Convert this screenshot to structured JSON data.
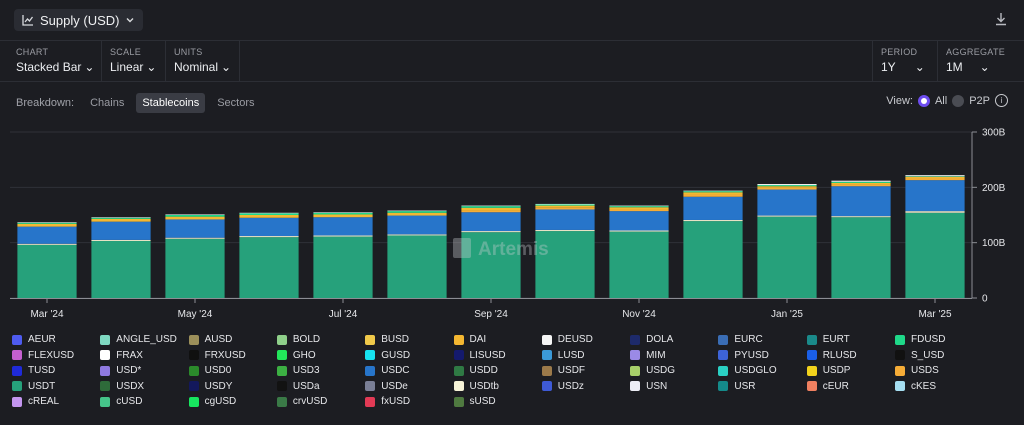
{
  "header": {
    "title": "Supply (USD)"
  },
  "controls": [
    {
      "label": "CHART",
      "value": "Stacked Bar"
    },
    {
      "label": "SCALE",
      "value": "Linear"
    },
    {
      "label": "UNITS",
      "value": "Nominal"
    },
    {
      "label": "PERIOD",
      "value": "1Y"
    },
    {
      "label": "AGGREGATE",
      "value": "1M"
    }
  ],
  "breakdown": {
    "label": "Breakdown:",
    "tabs": [
      "Chains",
      "Stablecoins",
      "Sectors"
    ],
    "active": "Stablecoins"
  },
  "view": {
    "label": "View:",
    "options": [
      "All",
      "P2P"
    ],
    "selected": "All"
  },
  "watermark": "Artemis",
  "chart_data": {
    "type": "bar",
    "stacked": true,
    "ylim": [
      0,
      300
    ],
    "y_ticks": [
      "0",
      "100B",
      "200B",
      "300B"
    ],
    "x_tick_labels": [
      {
        "index": 0,
        "label": "Mar '24"
      },
      {
        "index": 2,
        "label": "May '24"
      },
      {
        "index": 4,
        "label": "Jul '24"
      },
      {
        "index": 6,
        "label": "Sep '24"
      },
      {
        "index": 8,
        "label": "Nov '24"
      },
      {
        "index": 10,
        "label": "Jan '25"
      },
      {
        "index": 12,
        "label": "Mar '25"
      }
    ],
    "categories": [
      "Mar '24",
      "Apr '24",
      "May '24",
      "Jun '24",
      "Jul '24",
      "Aug '24",
      "Sep '24",
      "Oct '24",
      "Nov '24",
      "Dec '24",
      "Jan '25",
      "Feb '25",
      "Mar '25"
    ],
    "series": [
      {
        "name": "USDT",
        "color": "#26a17b",
        "values": [
          96,
          103,
          107,
          110,
          111,
          113,
          119,
          121,
          120,
          139,
          147,
          146,
          154
        ]
      },
      {
        "name": "USDe",
        "color": "#e7e2c4",
        "values": [
          2,
          2,
          2,
          2,
          2,
          2,
          2,
          2,
          2,
          2,
          2,
          2,
          3
        ]
      },
      {
        "name": "USDC",
        "color": "#2775ca",
        "values": [
          31,
          33,
          33,
          33,
          33,
          34,
          34,
          37,
          35,
          42,
          47,
          54,
          56
        ]
      },
      {
        "name": "USDS",
        "color": "#f5ac37",
        "values": [
          0,
          0,
          0,
          0,
          0,
          0,
          3,
          3,
          3,
          4,
          3,
          3,
          3
        ]
      },
      {
        "name": "DAI",
        "color": "#f4b731",
        "values": [
          5,
          5,
          5,
          5,
          5,
          5,
          5,
          4,
          4,
          4,
          3,
          3,
          3
        ]
      },
      {
        "name": "FDUSD",
        "color": "#1fd98a",
        "values": [
          2,
          2,
          3,
          3,
          3,
          3,
          3,
          2,
          2,
          2,
          2,
          2,
          1
        ]
      },
      {
        "name": "DEUSD",
        "color": "#f2f2f2",
        "values": [
          1,
          1,
          1,
          1,
          1,
          1,
          1,
          1,
          1,
          1,
          2,
          2,
          2
        ]
      }
    ],
    "legend": [
      {
        "name": "AEUR",
        "color": "#4e5bf0"
      },
      {
        "name": "ANGLE_USD",
        "color": "#7fd9c2"
      },
      {
        "name": "AUSD",
        "color": "#9c8f5a"
      },
      {
        "name": "BOLD",
        "color": "#8fd08a"
      },
      {
        "name": "BUSD",
        "color": "#f0c94a"
      },
      {
        "name": "DAI",
        "color": "#f4b731"
      },
      {
        "name": "DEUSD",
        "color": "#f5f5f5"
      },
      {
        "name": "DOLA",
        "color": "#1d2a6b"
      },
      {
        "name": "EURC",
        "color": "#3a6db5"
      },
      {
        "name": "EURT",
        "color": "#1a8a8a"
      },
      {
        "name": "FDUSD",
        "color": "#1fd98a"
      },
      {
        "name": "FLEXUSD",
        "color": "#c65fd0"
      },
      {
        "name": "FRAX",
        "color": "#ffffff"
      },
      {
        "name": "FRXUSD",
        "color": "#101010"
      },
      {
        "name": "GHO",
        "color": "#22e65a"
      },
      {
        "name": "GUSD",
        "color": "#17e3f0"
      },
      {
        "name": "LISUSD",
        "color": "#141a6e"
      },
      {
        "name": "LUSD",
        "color": "#3b9ad9"
      },
      {
        "name": "MIM",
        "color": "#9b8ae6"
      },
      {
        "name": "PYUSD",
        "color": "#3d63d8"
      },
      {
        "name": "RLUSD",
        "color": "#1a5fe8"
      },
      {
        "name": "S_USD",
        "color": "#111111"
      },
      {
        "name": "TUSD",
        "color": "#1f2ad9"
      },
      {
        "name": "USD*",
        "color": "#8f79e0"
      },
      {
        "name": "USD0",
        "color": "#2b8a2b"
      },
      {
        "name": "USD3",
        "color": "#3cb043"
      },
      {
        "name": "USDC",
        "color": "#2775ca"
      },
      {
        "name": "USDD",
        "color": "#2f7a44"
      },
      {
        "name": "USDF",
        "color": "#9c7a4a"
      },
      {
        "name": "USDG",
        "color": "#a8d06a"
      },
      {
        "name": "USDGLO",
        "color": "#2ad0c4"
      },
      {
        "name": "USDP",
        "color": "#f2d21c"
      },
      {
        "name": "USDS",
        "color": "#f5ac37"
      },
      {
        "name": "USDT",
        "color": "#26a17b"
      },
      {
        "name": "USDX",
        "color": "#2e6b3a"
      },
      {
        "name": "USDY",
        "color": "#13185c"
      },
      {
        "name": "USDa",
        "color": "#121212"
      },
      {
        "name": "USDe",
        "color": "#7a7f96"
      },
      {
        "name": "USDtb",
        "color": "#f7f4d8"
      },
      {
        "name": "USDz",
        "color": "#3e5ad6"
      },
      {
        "name": "USN",
        "color": "#ecedf5"
      },
      {
        "name": "USR",
        "color": "#148a8a"
      },
      {
        "name": "cEUR",
        "color": "#f08060"
      },
      {
        "name": "cKES",
        "color": "#a6dff2"
      },
      {
        "name": "cREAL",
        "color": "#c496f0"
      },
      {
        "name": "cUSD",
        "color": "#45c48a"
      },
      {
        "name": "cgUSD",
        "color": "#17e65f"
      },
      {
        "name": "crvUSD",
        "color": "#3a7a47"
      },
      {
        "name": "fxUSD",
        "color": "#e33a55"
      },
      {
        "name": "sUSD",
        "color": "#4f7a40"
      }
    ]
  }
}
